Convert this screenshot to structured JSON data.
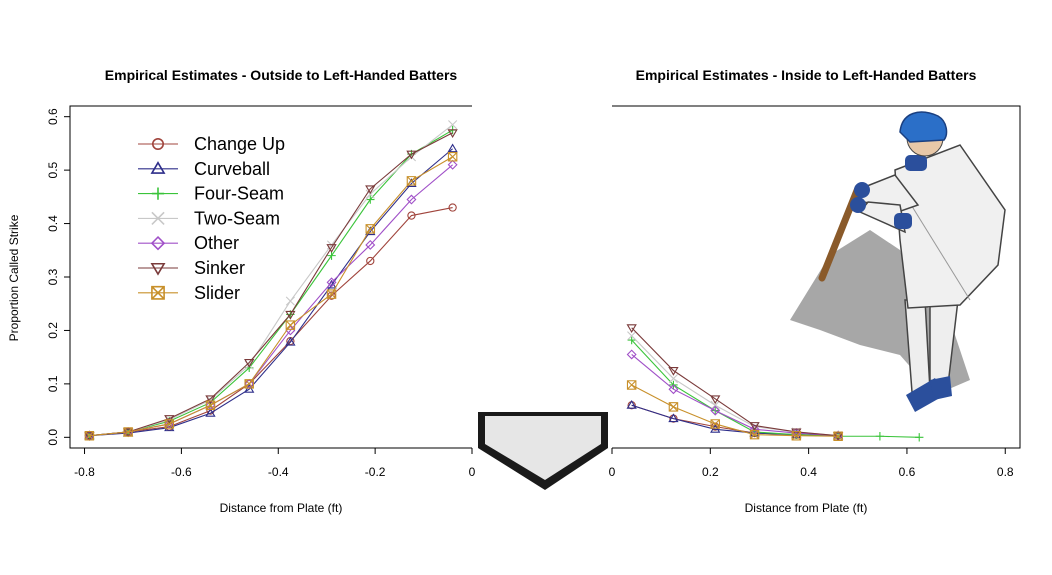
{
  "chart_data": [
    {
      "type": "line",
      "title": "Empirical Estimates - Outside to Left-Handed Batters",
      "xlabel": "Distance from Plate (ft)",
      "ylabel": "Proportion Called Strike",
      "xlim": [
        -0.83,
        0
      ],
      "ylim": [
        -0.02,
        0.62
      ],
      "xticks": [
        -0.8,
        -0.6,
        -0.4,
        -0.2,
        0
      ],
      "xtick_labels": [
        "-0.8",
        "-0.6",
        "-0.4",
        "-0.2",
        "0"
      ],
      "yticks": [
        0.0,
        0.1,
        0.2,
        0.3,
        0.4,
        0.5,
        0.6
      ],
      "ytick_labels": [
        "0.0",
        "0.1",
        "0.2",
        "0.3",
        "0.4",
        "0.5",
        "0.6"
      ],
      "legend_position": "top-left",
      "x": [
        -0.79,
        -0.71,
        -0.625,
        -0.54,
        -0.46,
        -0.375,
        -0.29,
        -0.21,
        -0.125,
        -0.04
      ],
      "series": [
        {
          "name": "Change Up",
          "color": "#a0443c",
          "marker": "circle",
          "values": [
            0.003,
            0.01,
            0.02,
            0.05,
            0.1,
            0.18,
            0.265,
            0.33,
            0.415,
            0.43
          ]
        },
        {
          "name": "Curveball",
          "color": "#2e2e8a",
          "marker": "triangle-up",
          "values": [
            0.003,
            0.008,
            0.018,
            0.045,
            0.09,
            0.178,
            0.285,
            0.385,
            0.475,
            0.54
          ]
        },
        {
          "name": "Four-Seam",
          "color": "#3ac43a",
          "marker": "plus",
          "values": [
            0.003,
            0.01,
            0.03,
            0.065,
            0.13,
            0.23,
            0.34,
            0.445,
            0.53,
            0.575
          ]
        },
        {
          "name": "Two-Seam",
          "color": "#c8c8c8",
          "marker": "cross",
          "values": [
            0.003,
            0.01,
            0.033,
            0.07,
            0.135,
            0.255,
            0.36,
            0.455,
            0.525,
            0.585
          ]
        },
        {
          "name": "Other",
          "color": "#a050c8",
          "marker": "diamond",
          "values": [
            0.003,
            0.01,
            0.025,
            0.06,
            0.1,
            0.2,
            0.29,
            0.36,
            0.445,
            0.51
          ]
        },
        {
          "name": "Sinker",
          "color": "#7a3a3a",
          "marker": "triangle-down",
          "values": [
            0.003,
            0.01,
            0.035,
            0.072,
            0.14,
            0.23,
            0.355,
            0.465,
            0.53,
            0.57
          ]
        },
        {
          "name": "Slider",
          "color": "#c8902a",
          "marker": "square-cross",
          "values": [
            0.003,
            0.01,
            0.025,
            0.06,
            0.1,
            0.21,
            0.268,
            0.39,
            0.48,
            0.525
          ]
        }
      ]
    },
    {
      "type": "line",
      "title": "Empirical Estimates - Inside to Left-Handed Batters",
      "xlabel": "Distance from Plate (ft)",
      "xlim": [
        0,
        0.83
      ],
      "ylim": [
        -0.02,
        0.62
      ],
      "xticks": [
        0,
        0.2,
        0.4,
        0.6,
        0.8
      ],
      "xtick_labels": [
        "0",
        "0.2",
        "0.4",
        "0.6",
        "0.8"
      ],
      "series": [
        {
          "name": "Change Up",
          "color": "#a0443c",
          "marker": "circle",
          "x": [
            0.04,
            0.125,
            0.21,
            0.29,
            0.375,
            0.46
          ],
          "values": [
            0.06,
            0.035,
            0.02,
            0.008,
            0.005,
            0.003
          ]
        },
        {
          "name": "Curveball",
          "color": "#2e2e8a",
          "marker": "triangle-up",
          "x": [
            0.04,
            0.125,
            0.21,
            0.29,
            0.375,
            0.46
          ],
          "values": [
            0.06,
            0.035,
            0.015,
            0.008,
            0.005,
            0.003
          ]
        },
        {
          "name": "Four-Seam",
          "color": "#3ac43a",
          "marker": "plus",
          "x": [
            0.04,
            0.125,
            0.21,
            0.29,
            0.375,
            0.46,
            0.545,
            0.625
          ],
          "values": [
            0.182,
            0.098,
            0.05,
            0.01,
            0.005,
            0.002,
            0.002,
            0.0
          ]
        },
        {
          "name": "Two-Seam",
          "color": "#c8c8c8",
          "marker": "cross",
          "x": [
            0.04,
            0.125,
            0.21,
            0.29,
            0.375,
            0.46
          ],
          "values": [
            0.19,
            0.11,
            0.06,
            0.02,
            0.01,
            0.003
          ]
        },
        {
          "name": "Other",
          "color": "#a050c8",
          "marker": "diamond",
          "x": [
            0.04,
            0.125,
            0.21,
            0.29,
            0.375,
            0.46
          ],
          "values": [
            0.155,
            0.09,
            0.05,
            0.015,
            0.008,
            0.003
          ]
        },
        {
          "name": "Sinker",
          "color": "#7a3a3a",
          "marker": "triangle-down",
          "x": [
            0.04,
            0.125,
            0.21,
            0.29,
            0.375,
            0.46
          ],
          "values": [
            0.205,
            0.125,
            0.072,
            0.022,
            0.01,
            0.003
          ]
        },
        {
          "name": "Slider",
          "color": "#c8902a",
          "marker": "square-cross",
          "x": [
            0.04,
            0.125,
            0.21,
            0.29,
            0.375,
            0.46
          ],
          "values": [
            0.098,
            0.057,
            0.025,
            0.005,
            0.003,
            0.002
          ]
        }
      ]
    }
  ]
}
